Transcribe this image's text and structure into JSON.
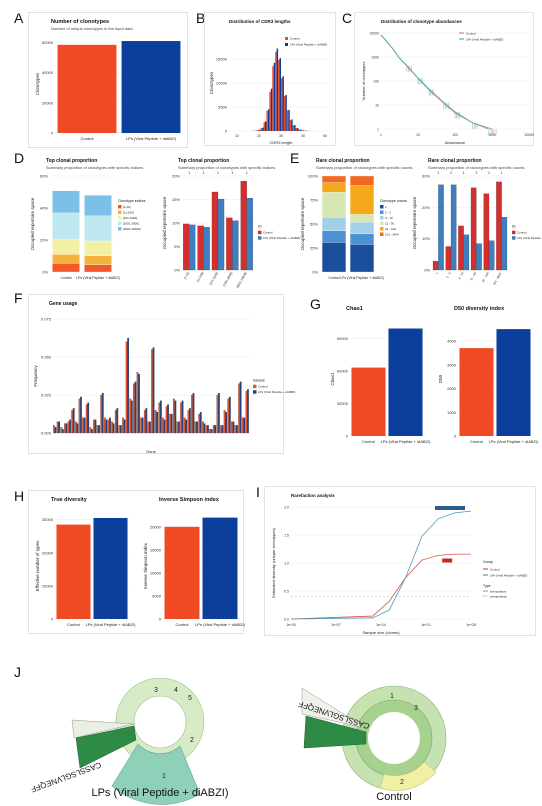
{
  "figure": {
    "letters": [
      "A",
      "B",
      "C",
      "D",
      "E",
      "F",
      "G",
      "H",
      "I",
      "J"
    ],
    "colors": {
      "control": "#f04a24",
      "lps": "#0c3e9c",
      "c1": "#d32f2f",
      "c2": "#3d7fc0",
      "d_bg": "#e7e7e7"
    },
    "sunburst_labels": {
      "left": "LPs (Viral Peptide + diABZI)",
      "right": "Control"
    },
    "sunburst_text": {
      "left_clone": "CASSLSGLVNEQFF",
      "right_clone": "CASSLSGLVNEQFF",
      "n1": "1",
      "n2": "2",
      "n3": "3",
      "n4": "4",
      "n5": "5"
    }
  },
  "chart_data": [
    {
      "id": "A",
      "type": "bar",
      "title": "Number of clonotypes",
      "subtitle": "Number of unique clonotypes in the input data",
      "xlabel": "",
      "ylabel": "Clonotypes",
      "categories": [
        "Control",
        "LPs (Viral Peptide + diABZI)"
      ],
      "values": [
        58500,
        61000
      ],
      "ylim": [
        0,
        65000
      ],
      "yticks": [
        "0",
        "20000",
        "40000",
        "60000"
      ],
      "ytick_values": [
        0,
        20000,
        40000,
        60000
      ]
    },
    {
      "id": "B",
      "type": "bar",
      "title": "Distribution of CDR3 lengths",
      "xlabel": "CDR3 length",
      "ylabel": "Clonotypes",
      "series": [
        {
          "name": "Control",
          "values": [
            30,
            80,
            200,
            600,
            1800,
            4200,
            8200,
            13500,
            16500,
            14800,
            11000,
            7300,
            4300,
            2300,
            1200,
            600,
            280,
            130,
            60,
            20
          ]
        },
        {
          "name": "LPs (Viral Peptide + diABZI)",
          "values": [
            40,
            100,
            240,
            700,
            2000,
            4500,
            8800,
            14200,
            17200,
            15200,
            11400,
            7500,
            4400,
            2400,
            1250,
            620,
            300,
            140,
            70,
            25
          ]
        }
      ],
      "ylim": [
        0,
        20000
      ],
      "yticks": [
        "0",
        "5000",
        "10000",
        "15000"
      ],
      "ytick_values": [
        0,
        5000,
        10000,
        15000
      ],
      "xticks": [
        "10",
        "20",
        "30",
        "40",
        "50"
      ]
    },
    {
      "id": "C",
      "type": "line",
      "title": "Distribution of clonotype abundances",
      "xlabel": "Abundance",
      "ylabel": "Number of clonotypes",
      "series": [
        {
          "name": "Control",
          "values": [
            [
              1,
              40000
            ],
            [
              2,
              9000
            ],
            [
              3,
              3200
            ],
            [
              5,
              1200
            ],
            [
              10,
              300
            ],
            [
              20,
              80
            ],
            [
              50,
              18
            ],
            [
              100,
              6
            ],
            [
              300,
              2
            ],
            [
              1000,
              1
            ]
          ]
        },
        {
          "name": "LPs (Viral Peptide + diABZI)",
          "values": [
            [
              1,
              42000
            ],
            [
              2,
              9500
            ],
            [
              3,
              3400
            ],
            [
              5,
              1300
            ],
            [
              10,
              320
            ],
            [
              20,
              90
            ],
            [
              50,
              20
            ],
            [
              100,
              7
            ],
            [
              300,
              2
            ],
            [
              800,
              1
            ]
          ]
        }
      ],
      "xscale": "log",
      "yscale": "log",
      "yticks": [
        "1",
        "10",
        "100",
        "1000",
        "10000"
      ],
      "xticks": [
        "1",
        "10",
        "100",
        "1000",
        "10000"
      ]
    },
    {
      "id": "D1",
      "type": "bar",
      "title": "Top clonal proportion",
      "subtitle": "Summary proportion of clonotypes with specific indices",
      "xlabel": "",
      "ylabel": "Occupied repertoire space",
      "categories": [
        "Control",
        "LPs (Viral Peptide + diABZI)"
      ],
      "legend_title": "Clonotype indices",
      "series": [
        {
          "name": "[1:10]",
          "values": [
            6,
            5
          ]
        },
        {
          "name": "[11:100]",
          "values": [
            6,
            6
          ]
        },
        {
          "name": "[101:1000]",
          "values": [
            10,
            10
          ]
        },
        {
          "name": "[1001:3000]",
          "values": [
            18,
            17
          ]
        },
        {
          "name": "[3001:10000]",
          "values": [
            15,
            14
          ]
        }
      ],
      "yticks": [
        "0%",
        "20%",
        "40%",
        "60%"
      ],
      "ylim": [
        0,
        65
      ]
    },
    {
      "id": "D2",
      "type": "bar",
      "title": "Top clonal proportion",
      "subtitle": "Summary proportion of clonotypes with specific indices",
      "xlabel": "",
      "ylabel": "Occupied repertoire space",
      "categories": [
        "[1:10]",
        "[11:100]",
        "[101:1000]",
        "[1001:3000]",
        "[3001:10000]"
      ],
      "series": [
        {
          "name": "Control",
          "values": [
            9.8,
            9.4,
            16.6,
            11.1,
            18.9
          ]
        },
        {
          "name": "LPs (Viral Peptide + diABZI)",
          "values": [
            9.6,
            9.1,
            15.1,
            10.5,
            15.3
          ]
        }
      ],
      "yticks": [
        "0%",
        "5%",
        "10%",
        "15%",
        "20%"
      ],
      "ylim": [
        0,
        20
      ],
      "significance": [
        "1",
        "1",
        "1",
        "1",
        "1"
      ],
      "legend_title": "ID"
    },
    {
      "id": "E1",
      "type": "bar",
      "title": "Rare clonal proportion",
      "subtitle": "Summary proportion of clonotypes with specific counts",
      "xlabel": "",
      "ylabel": "Occupied repertoire space",
      "categories": [
        "Control",
        "LPs (Viral Peptide + diABZI)"
      ],
      "legend_title": "Clonotype counts",
      "series": [
        {
          "name": "1",
          "values": [
            31,
            29
          ]
        },
        {
          "name": "2 - 3",
          "values": [
            12,
            11
          ]
        },
        {
          "name": "4 - 10",
          "values": [
            14,
            12
          ]
        },
        {
          "name": "11 - 30",
          "values": [
            26,
            8
          ]
        },
        {
          "name": "31 - 100",
          "values": [
            10,
            30
          ]
        },
        {
          "name": "101 - MAX",
          "values": [
            7,
            10
          ]
        }
      ],
      "yticks": [
        "0%",
        "25%",
        "50%",
        "75%",
        "100%"
      ],
      "ylim": [
        0,
        100
      ]
    },
    {
      "id": "E2",
      "type": "bar",
      "title": "Rare clonal proportion",
      "subtitle": "Summary proportion of clonotypes with specific counts",
      "xlabel": "",
      "ylabel": "Occupied repertoire space",
      "categories": [
        "1",
        "2 - 3",
        "4 - 10",
        "11 - 30",
        "31 - 100",
        "101 - MAX"
      ],
      "series": [
        {
          "name": "Control",
          "values": [
            3,
            8,
            15,
            28,
            26,
            30
          ]
        },
        {
          "name": "LPs (Viral Peptide + diABZI)",
          "values": [
            29,
            29,
            12,
            9,
            10,
            18
          ]
        }
      ],
      "yticks": [
        "0%",
        "10%",
        "20%",
        "30%"
      ],
      "ylim": [
        0,
        32
      ],
      "significance": [
        "1",
        "1",
        "1",
        "1",
        "1",
        "1"
      ],
      "legend_title": "ID"
    },
    {
      "id": "F",
      "type": "bar",
      "title": "Gene usage",
      "xlabel": "Gene",
      "ylabel": "Frequency",
      "legend_title": "Sample",
      "series": [
        {
          "name": "Control",
          "values": [
            0.004,
            0.006,
            0.003,
            0.005,
            0.006,
            0.012,
            0.006,
            0.018,
            0.008,
            0.015,
            0.003,
            0.007,
            0.004,
            0.02,
            0.008,
            0.007,
            0.006,
            0.012,
            0.004,
            0.008,
            0.048,
            0.018,
            0.026,
            0.032,
            0.008,
            0.012,
            0.006,
            0.044,
            0.012,
            0.016,
            0.008,
            0.014,
            0.01,
            0.018,
            0.006,
            0.016,
            0.008,
            0.012,
            0.02,
            0.006,
            0.01,
            0.006,
            0.004,
            0.002,
            0.004,
            0.02,
            0.004,
            0.012,
            0.018,
            0.006,
            0.004,
            0.026,
            0.008,
            0.022
          ]
        },
        {
          "name": "LPs (Viral Peptide + diABZI)",
          "values": [
            0.003,
            0.006,
            0.002,
            0.005,
            0.007,
            0.013,
            0.005,
            0.019,
            0.008,
            0.016,
            0.002,
            0.007,
            0.004,
            0.021,
            0.007,
            0.008,
            0.005,
            0.013,
            0.004,
            0.007,
            0.05,
            0.017,
            0.027,
            0.031,
            0.008,
            0.013,
            0.006,
            0.045,
            0.011,
            0.017,
            0.007,
            0.015,
            0.01,
            0.017,
            0.006,
            0.017,
            0.007,
            0.013,
            0.021,
            0.006,
            0.011,
            0.005,
            0.004,
            0.002,
            0.004,
            0.021,
            0.004,
            0.011,
            0.019,
            0.006,
            0.004,
            0.027,
            0.008,
            0.023
          ]
        }
      ],
      "yticks": [
        "0.000",
        "0.025",
        "0.050",
        "0.075"
      ],
      "ylim": [
        0,
        0.06
      ]
    },
    {
      "id": "G1",
      "type": "bar",
      "title": "Chao1",
      "xlabel": "",
      "ylabel": "Chao1",
      "categories": [
        "Control",
        "LPs (Viral Peptide + diABZI)"
      ],
      "values": [
        63000,
        99000
      ],
      "ylim": [
        0,
        105000
      ],
      "yticks": [
        "0",
        "30000",
        "60000",
        "90000"
      ],
      "ytick_values": [
        0,
        30000,
        60000,
        90000
      ]
    },
    {
      "id": "G2",
      "type": "bar",
      "title": "D50 diversity index",
      "xlabel": "",
      "ylabel": "D50",
      "categories": [
        "Control",
        "LPs (Viral Peptide + diABZI)"
      ],
      "values": [
        3700,
        4500
      ],
      "ylim": [
        0,
        4800
      ],
      "yticks": [
        "0",
        "1000",
        "2000",
        "3000",
        "4000"
      ],
      "ytick_values": [
        0,
        1000,
        2000,
        3000,
        4000
      ]
    },
    {
      "id": "H1",
      "type": "bar",
      "title": "True diversity",
      "xlabel": "",
      "ylabel": "Effective number of types",
      "categories": [
        "Control",
        "LPs (Viral Peptide + diABZI)"
      ],
      "values": [
        28500,
        30500
      ],
      "ylim": [
        0,
        32000
      ],
      "yticks": [
        "0",
        "10000",
        "20000",
        "30000"
      ],
      "ytick_values": [
        0,
        10000,
        20000,
        30000
      ]
    },
    {
      "id": "H2",
      "type": "bar",
      "title": "Inverse Simpson index",
      "xlabel": "",
      "ylabel": "Inverse Simpson Index",
      "categories": [
        "Control",
        "LPs (Viral Peptide + diABZI)"
      ],
      "values": [
        20000,
        22000
      ],
      "ylim": [
        0,
        23000
      ],
      "yticks": [
        "0",
        "5000",
        "10000",
        "15000",
        "20000"
      ],
      "ytick_values": [
        0,
        5000,
        10000,
        15000,
        20000
      ]
    },
    {
      "id": "I",
      "type": "line",
      "title": "Rarefaction analysis",
      "xlabel": "Sample size (clones)",
      "ylabel": "Estimated diversity (unique clonotypes)",
      "legend_title_group": "Group",
      "legend_title_type": "Type",
      "type_labels": [
        "interpolation",
        "extrapolation"
      ],
      "series": [
        {
          "name": "Control",
          "values": [
            [
              1,
              0
            ],
            [
              100000,
              5000
            ],
            [
              1000000,
              30000
            ],
            [
              10000000,
              70000
            ],
            [
              100000000,
              100000
            ],
            [
              1000000000,
              108000
            ],
            [
              10000000000,
              110000
            ],
            [
              100000000000,
              110000
            ]
          ]
        },
        {
          "name": "LPs (Viral Peptide + diABZI)",
          "values": [
            [
              1,
              0
            ],
            [
              100000,
              2000
            ],
            [
              1000000,
              15000
            ],
            [
              10000000,
              70000
            ],
            [
              100000000,
              140000
            ],
            [
              1000000000,
              170000
            ],
            [
              10000000000,
              180000
            ],
            [
              100000000000,
              183000
            ]
          ]
        }
      ],
      "xscale": "log",
      "xticks": [
        "1e+00",
        "1e+07",
        "1e+14",
        "1e+21",
        "1e+28"
      ],
      "yticks": [
        "0.0",
        "0.5",
        "1.0",
        "1.5",
        "2.0"
      ]
    }
  ]
}
